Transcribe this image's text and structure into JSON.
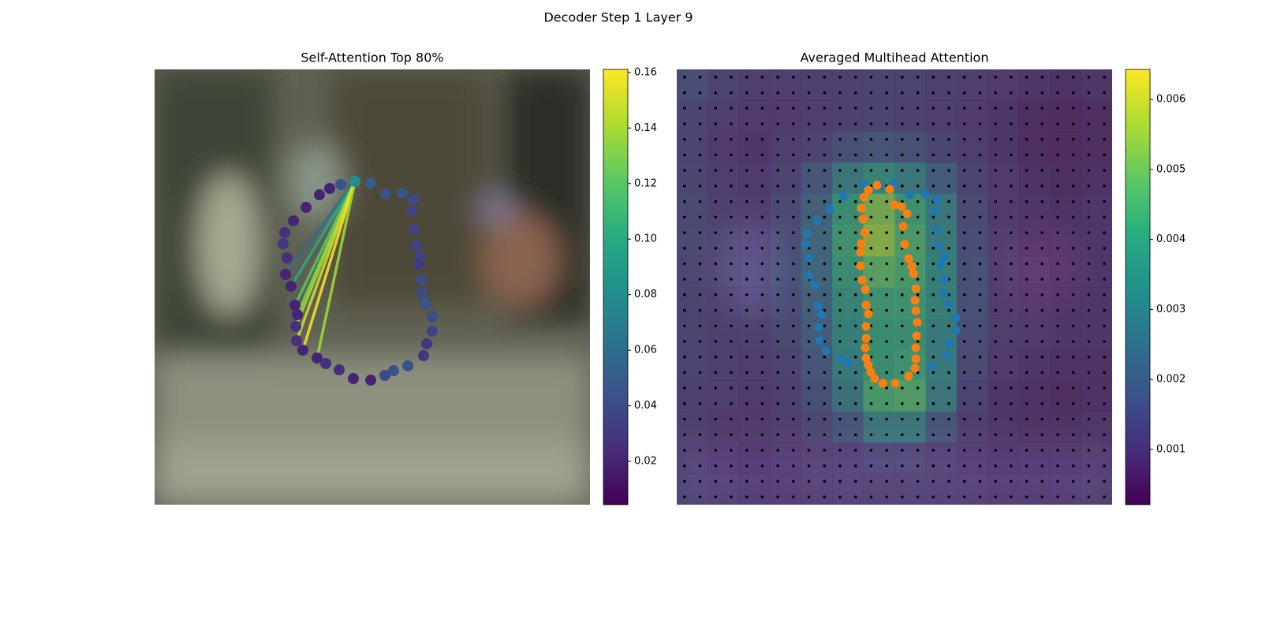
{
  "title": "Decoder Step 1 Layer 9",
  "chart_data": [
    {
      "type": "attention-scatter",
      "title": "Self-Attention Top 80%",
      "colormap": "viridis",
      "xlim": [
        0,
        552
      ],
      "ylim": [
        552,
        0
      ],
      "x": [
        254,
        274,
        293,
        314,
        328,
        326,
        329,
        332,
        337,
        335,
        338,
        339,
        344,
        352,
        352,
        345,
        341,
        321,
        303,
        292,
        274,
        252,
        234,
        217,
        206,
        188,
        180,
        179,
        181,
        178,
        173,
        166,
        168,
        163,
        165,
        176,
        192,
        209,
        222,
        236
      ],
      "y": [
        142,
        144,
        158,
        157,
        165,
        180,
        203,
        223,
        237,
        247,
        267,
        284,
        297,
        314,
        332,
        348,
        363,
        376,
        382,
        388,
        394,
        392,
        381,
        373,
        366,
        356,
        344,
        326,
        311,
        299,
        275,
        260,
        239,
        221,
        207,
        192,
        175,
        159,
        151,
        146
      ],
      "values": [
        0.08,
        0.05,
        0.045,
        0.045,
        0.04,
        0.035,
        0.035,
        0.035,
        0.035,
        0.03,
        0.04,
        0.04,
        0.045,
        0.04,
        0.035,
        0.03,
        0.03,
        0.045,
        0.045,
        0.04,
        0.02,
        0.02,
        0.025,
        0.025,
        0.02,
        0.02,
        0.025,
        0.025,
        0.02,
        0.02,
        0.02,
        0.02,
        0.025,
        0.03,
        0.025,
        0.02,
        0.02,
        0.02,
        0.02,
        0.045
      ],
      "links": {
        "source": 0,
        "targets": [
          31,
          30,
          29,
          28,
          27,
          26,
          25,
          24
        ],
        "values": [
          0.06,
          0.1,
          0.12,
          0.13,
          0.14,
          0.15,
          0.16,
          0.14
        ]
      },
      "colorbar": {
        "lim": [
          0.0044,
          0.1611
        ],
        "ticks": [
          0.02,
          0.04,
          0.06,
          0.08,
          {
            "value": 0.1,
            "label": "0.10"
          },
          0.12,
          0.14,
          0.16
        ]
      }
    },
    {
      "type": "heatmap",
      "title": "Averaged Multihead Attention",
      "colormap": "viridis",
      "xlim": [
        0,
        552
      ],
      "ylim": [
        552,
        0
      ],
      "values": [
        [
          0.0015,
          0.0012,
          0.001,
          0.001,
          0.0011,
          0.0011,
          0.0012,
          0.0012,
          0.0011,
          0.001,
          0.0009,
          0.0008,
          0.0007,
          0.0008
        ],
        [
          0.0013,
          0.001,
          0.0009,
          0.0009,
          0.001,
          0.0011,
          0.0012,
          0.0011,
          0.001,
          0.0009,
          0.0008,
          0.0006,
          0.0005,
          0.0006
        ],
        [
          0.0012,
          0.0009,
          0.0008,
          0.001,
          0.0012,
          0.0016,
          0.0018,
          0.0016,
          0.0013,
          0.001,
          0.0008,
          0.0006,
          0.0005,
          0.0006
        ],
        [
          0.0013,
          0.001,
          0.0009,
          0.0012,
          0.0018,
          0.003,
          0.0036,
          0.003,
          0.002,
          0.0012,
          0.0009,
          0.0007,
          0.0006,
          0.0007
        ],
        [
          0.0014,
          0.0011,
          0.001,
          0.0014,
          0.0022,
          0.004,
          0.0052,
          0.0042,
          0.003,
          0.0014,
          0.0009,
          0.0008,
          0.0007,
          0.0008
        ],
        [
          0.0014,
          0.0012,
          0.0011,
          0.0015,
          0.0024,
          0.0042,
          0.0055,
          0.0045,
          0.0032,
          0.0015,
          0.001,
          0.0008,
          0.0008,
          0.0008
        ],
        [
          0.0013,
          0.0012,
          0.0012,
          0.0016,
          0.0024,
          0.004,
          0.0048,
          0.0044,
          0.0034,
          0.0016,
          0.001,
          0.0009,
          0.0008,
          0.0008
        ],
        [
          0.0012,
          0.0011,
          0.0012,
          0.0015,
          0.0022,
          0.0036,
          0.0042,
          0.0042,
          0.0034,
          0.0016,
          0.001,
          0.0009,
          0.0008,
          0.0008
        ],
        [
          0.0012,
          0.0011,
          0.0011,
          0.0014,
          0.002,
          0.0034,
          0.004,
          0.004,
          0.0032,
          0.0015,
          0.001,
          0.0009,
          0.0008,
          0.0008
        ],
        [
          0.0012,
          0.0011,
          0.001,
          0.0012,
          0.0018,
          0.0032,
          0.004,
          0.0042,
          0.0032,
          0.0014,
          0.0009,
          0.0008,
          0.0007,
          0.0007
        ],
        [
          0.0011,
          0.001,
          0.0009,
          0.0011,
          0.0016,
          0.0028,
          0.0044,
          0.0046,
          0.003,
          0.0012,
          0.0008,
          0.0007,
          0.0006,
          0.0007
        ],
        [
          0.0011,
          0.0009,
          0.0009,
          0.001,
          0.0013,
          0.0018,
          0.003,
          0.003,
          0.0018,
          0.001,
          0.0008,
          0.0007,
          0.0007,
          0.0008
        ],
        [
          0.0011,
          0.0009,
          0.0008,
          0.0009,
          0.001,
          0.0011,
          0.0013,
          0.0013,
          0.0011,
          0.0009,
          0.0008,
          0.0008,
          0.0008,
          0.0009
        ],
        [
          0.0012,
          0.001,
          0.0009,
          0.0009,
          0.001,
          0.0011,
          0.0011,
          0.0011,
          0.001,
          0.001,
          0.0009,
          0.0009,
          0.0009,
          0.001
        ]
      ],
      "series": [
        {
          "color": "#1f77b4",
          "x": [
            165,
            163,
            168,
            167,
            175,
            179,
            183,
            180,
            181,
            189,
            208,
            218,
            253,
            323,
            344,
            345,
            354,
            354,
            345,
            339,
            339,
            335,
            339,
            332,
            330,
            327,
            330,
            315,
            295,
            275,
            257,
            238,
            211,
            194,
            178
          ],
          "y": [
            208,
            222,
            239,
            261,
            274,
            300,
            311,
            327,
            344,
            357,
            367,
            372,
            392,
            376,
            363,
            348,
            331,
            315,
            298,
            284,
            267,
            247,
            238,
            224,
            204,
            180,
            165,
            158,
            159,
            145,
            148,
            146,
            161,
            177,
            192
          ]
        },
        {
          "color": "#ff7f0e",
          "x": [
            243,
            254,
            270,
            276,
            285,
            292,
            287,
            289,
            294,
            298,
            300,
            303,
            302,
            303,
            305,
            304,
            303,
            303,
            302,
            294,
            277,
            261,
            251,
            246,
            243,
            240,
            239,
            240,
            240,
            243,
            240,
            239,
            235,
            233,
            233,
            234,
            238,
            236,
            234,
            237
          ],
          "y": [
            153,
            147,
            152,
            172,
            174,
            183,
            199,
            222,
            240,
            250,
            259,
            278,
            293,
            306,
            321,
            338,
            353,
            367,
            379,
            389,
            398,
            398,
            392,
            384,
            375,
            366,
            353,
            341,
            326,
            310,
            299,
            279,
            267,
            249,
            232,
            221,
            207,
            190,
            176,
            162
          ]
        }
      ],
      "colorbar": {
        "lim": [
          0.00021,
          0.00643
        ],
        "ticks": [
          0.001,
          0.002,
          0.003,
          0.004,
          0.005,
          0.006
        ]
      }
    }
  ]
}
